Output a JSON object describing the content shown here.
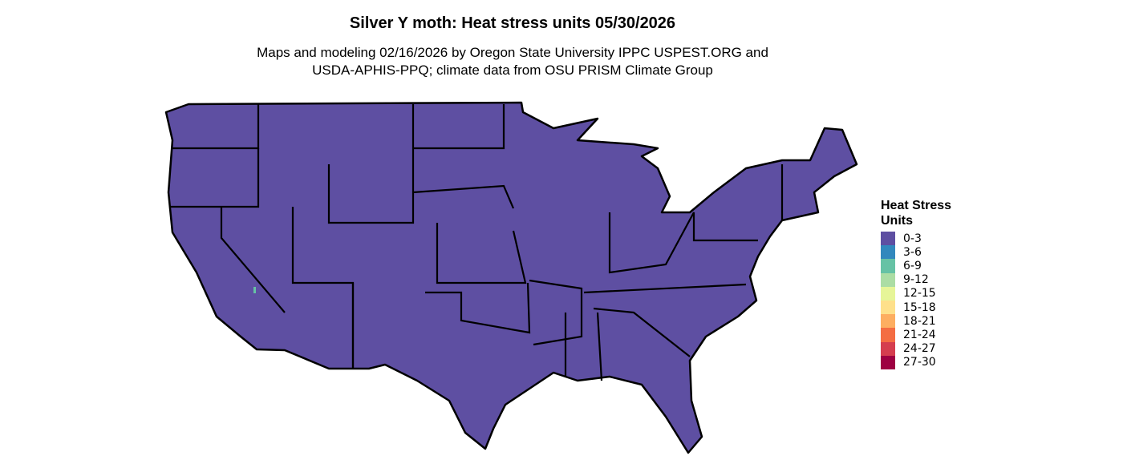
{
  "title": "Silver Y moth: Heat stress units 05/30/2026",
  "subtitle_lines": [
    "Maps and modeling 02/16/2026 by Oregon State University IPPC USPEST.ORG and",
    "USDA-APHIS-PPQ; climate data from OSU PRISM Climate Group"
  ],
  "map": {
    "region": "Contiguous United States",
    "fill_color": "#5E4FA2",
    "border_color": "#000000",
    "dominant_class": "0-3"
  },
  "legend": {
    "title_lines": [
      "Heat Stress",
      "Units"
    ],
    "items": [
      {
        "label": "0-3",
        "color": "#5E4FA2"
      },
      {
        "label": "3-6",
        "color": "#3288BD"
      },
      {
        "label": "6-9",
        "color": "#66C2A5"
      },
      {
        "label": "9-12",
        "color": "#ABDDA4"
      },
      {
        "label": "12-15",
        "color": "#E6F598"
      },
      {
        "label": "15-18",
        "color": "#FEE08B"
      },
      {
        "label": "18-21",
        "color": "#FDAE61"
      },
      {
        "label": "21-24",
        "color": "#F46D43"
      },
      {
        "label": "24-27",
        "color": "#D53E4F"
      },
      {
        "label": "27-30",
        "color": "#9E0142"
      }
    ]
  }
}
